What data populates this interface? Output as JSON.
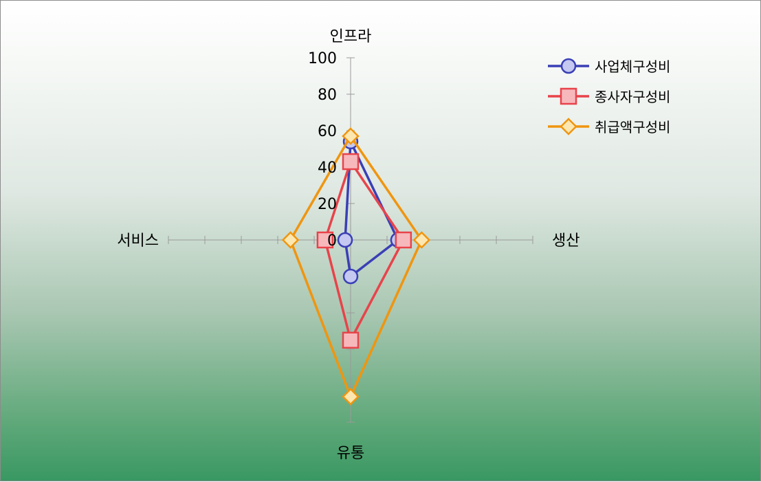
{
  "chart_data": {
    "type": "radar",
    "axes": [
      "인프라",
      "생산",
      "유통",
      "서비스"
    ],
    "radial_ticks": [
      "0",
      "20",
      "40",
      "60",
      "80",
      "100"
    ],
    "rlim": [
      0,
      100
    ],
    "series": [
      {
        "name": "사업체구성비",
        "values": [
          54,
          26,
          20,
          3
        ],
        "color": "#3a3fb5",
        "fill": "#c5c8f0",
        "marker": "circle"
      },
      {
        "name": "종사자구성비",
        "values": [
          43,
          29,
          55,
          14
        ],
        "color": "#e8434a",
        "fill": "#f7b8bc",
        "marker": "square"
      },
      {
        "name": "취급액구성비",
        "values": [
          57,
          39,
          86,
          33
        ],
        "color": "#f0950f",
        "fill": "#fde7b0",
        "marker": "diamond"
      }
    ],
    "legend_position": "top-right",
    "grid": false
  }
}
